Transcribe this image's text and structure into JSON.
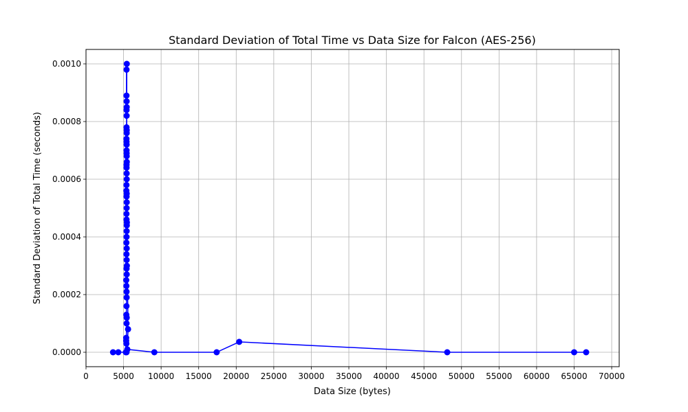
{
  "chart_data": {
    "type": "line",
    "title": "Standard Deviation of Total Time vs Data Size for Falcon (AES-256)",
    "xlabel": "Data Size (bytes)",
    "ylabel": "Standard Deviation of Total Time (seconds)",
    "xlim": [
      0,
      71000
    ],
    "ylim": [
      -5e-05,
      0.00105
    ],
    "grid": true,
    "xticks": [
      0,
      5000,
      10000,
      15000,
      20000,
      25000,
      30000,
      35000,
      40000,
      45000,
      50000,
      55000,
      60000,
      65000,
      70000
    ],
    "xtick_labels": [
      "0",
      "5000",
      "10000",
      "15000",
      "20000",
      "25000",
      "30000",
      "35000",
      "40000",
      "45000",
      "50000",
      "55000",
      "60000",
      "65000",
      "70000"
    ],
    "yticks": [
      0.0,
      0.0002,
      0.0004,
      0.0006,
      0.0008,
      0.001
    ],
    "ytick_labels": [
      "0.0000",
      "0.0002",
      "0.0004",
      "0.0006",
      "0.0008",
      "0.0010"
    ],
    "series": [
      {
        "color": "#0000ff",
        "marker": "circle",
        "x": [
          3600,
          4300,
          5300,
          5350,
          5400,
          5350,
          5380,
          5400,
          5420,
          5370,
          5390,
          5410,
          5400,
          5380,
          5360,
          5420,
          5400,
          5440,
          5410,
          5390,
          5420,
          5380,
          5400,
          5410,
          5430,
          5400,
          5390,
          5410,
          5420,
          5400,
          5380,
          5390,
          5420,
          5410,
          5400,
          5430,
          5420,
          5400,
          5410,
          5390,
          5420,
          5400,
          5410,
          5400,
          5420,
          5410,
          5390,
          5400,
          5430,
          5420,
          5400,
          5410,
          5400,
          5420,
          5440,
          5600,
          5500,
          9100,
          17400,
          20400,
          48100,
          65000,
          66600
        ],
        "y": [
          0.0,
          0.0,
          0.0,
          5e-05,
          0.0,
          4e-05,
          3e-05,
          0.0001,
          0.00012,
          0.00013,
          0.00016,
          0.00019,
          0.00021,
          0.00023,
          0.00025,
          0.00027,
          0.00029,
          0.0003,
          0.00032,
          0.00034,
          0.00036,
          0.00038,
          0.0004,
          0.00042,
          0.00044,
          0.00046,
          0.00048,
          0.0005,
          0.00052,
          0.00054,
          0.00056,
          0.00058,
          0.0006,
          0.00062,
          0.00064,
          0.00066,
          0.00068,
          0.0007,
          0.00072,
          0.00074,
          0.00076,
          0.00078,
          0.00082,
          0.00084,
          0.00085,
          0.00087,
          0.00089,
          0.00098,
          0.001,
          0.00077,
          0.00073,
          0.00069,
          0.00065,
          0.00055,
          0.00045,
          8e-05,
          1e-05,
          0.0,
          0.0,
          3.6e-05,
          0.0,
          0.0,
          0.0
        ]
      }
    ]
  }
}
